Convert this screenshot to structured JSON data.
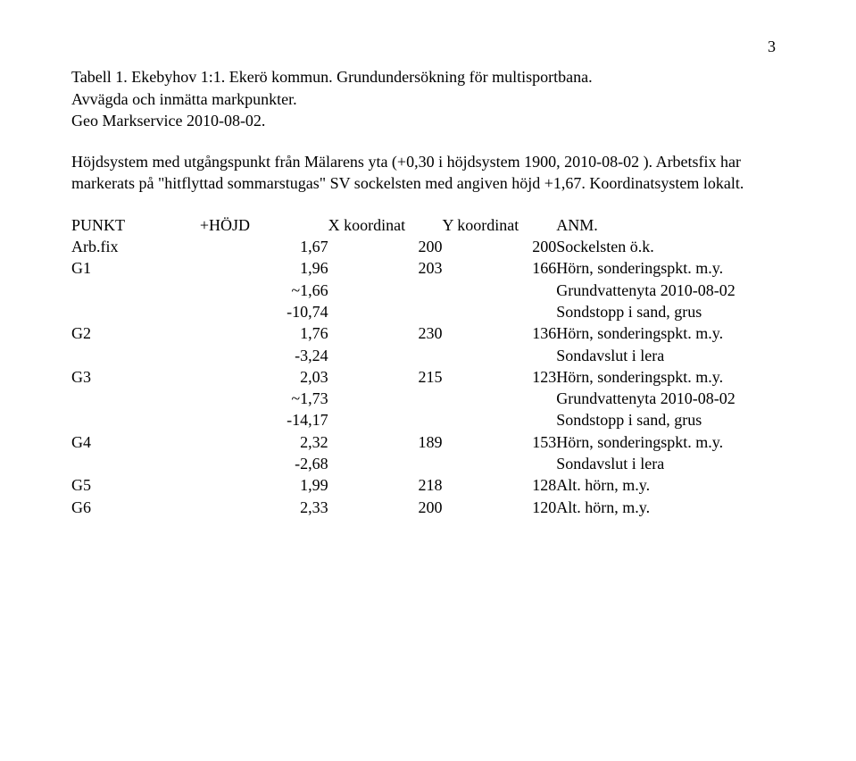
{
  "pageNumber": "3",
  "title1": "Tabell 1. Ekebyhov 1:1. Ekerö kommun. Grundundersökning för multisportbana.",
  "title2": "Avvägda och inmätta markpunkter.",
  "title3": "Geo Markservice 2010-08-02.",
  "para1": "Höjdsystem med utgångspunkt från Mälarens yta (+0,30 i höjdsystem 1900, 2010-08-02 ). Arbetsfix har markerats på \"hitflyttad sommarstugas\" SV sockelsten med angiven höjd +1,67. Koordinatsystem lokalt.",
  "headers": {
    "punkt": "PUNKT",
    "hojd": "+HÖJD",
    "x": "X koordinat",
    "y": "Y koordinat",
    "anm": "ANM."
  },
  "rows": {
    "arbfix": {
      "punkt": "Arb.fix",
      "hojd": "1,67",
      "x": "200",
      "y": "200",
      "anm": "Sockelsten ö.k."
    },
    "g1": {
      "punkt": "G1",
      "hojd": "1,96",
      "x": "203",
      "y": "166",
      "anm": "Hörn, sonderingspkt. m.y.",
      "hojd2": "~1,66",
      "anm2": "Grundvattenyta 2010-08-02",
      "hojd3": "-10,74",
      "anm3": "Sondstopp i sand, grus"
    },
    "g2": {
      "punkt": "G2",
      "hojd": "1,76",
      "x": "230",
      "y": "136",
      "anm": "Hörn, sonderingspkt. m.y.",
      "hojd2": "-3,24",
      "anm2": "Sondavslut i lera"
    },
    "g3": {
      "punkt": "G3",
      "hojd": "2,03",
      "x": "215",
      "y": "123",
      "anm": "Hörn, sonderingspkt. m.y.",
      "hojd2": "~1,73",
      "anm2": "Grundvattenyta 2010-08-02",
      "hojd3": "-14,17",
      "anm3": "Sondstopp i sand, grus"
    },
    "g4": {
      "punkt": "G4",
      "hojd": "2,32",
      "x": "189",
      "y": "153",
      "anm": "Hörn, sonderingspkt. m.y.",
      "hojd2": "-2,68",
      "anm2": "Sondavslut i lera"
    },
    "g5": {
      "punkt": "G5",
      "hojd": "1,99",
      "x": "218",
      "y": "128",
      "anm": "Alt. hörn, m.y."
    },
    "g6": {
      "punkt": "G6",
      "hojd": "2,33",
      "x": "200",
      "y": "120",
      "anm": "Alt. hörn, m.y."
    }
  }
}
